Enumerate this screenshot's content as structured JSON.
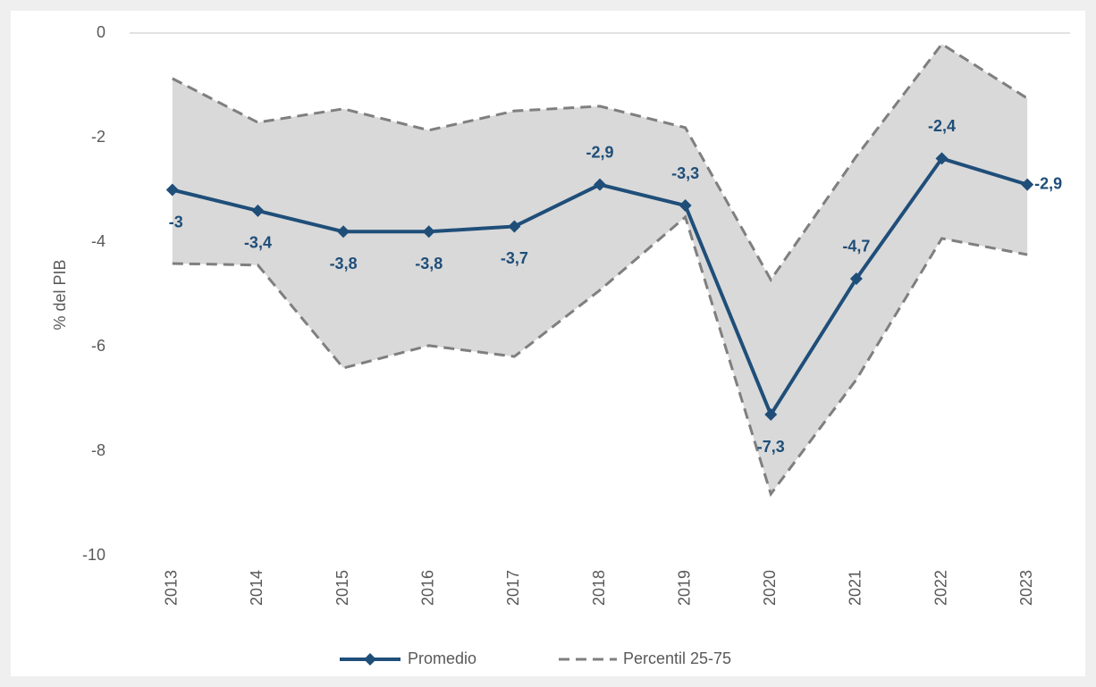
{
  "chart_data": {
    "type": "line",
    "y_label": "% del PIB",
    "categories": [
      "2013",
      "2014",
      "2015",
      "2016",
      "2017",
      "2018",
      "2019",
      "2020",
      "2021",
      "2022",
      "2023"
    ],
    "series": [
      {
        "name": "Promedio",
        "color": "#1f4e79",
        "values": [
          -3,
          -3.4,
          -3.8,
          -3.8,
          -3.7,
          -2.9,
          -3.3,
          -7.3,
          -4.7,
          -2.4,
          -2.9
        ],
        "value_labels": [
          "-3",
          "-3,4",
          "-3,8",
          "-3,8",
          "-3,7",
          "-2,9",
          "-3,3",
          "-7,3",
          "-4,7",
          "-2,4",
          "-2,9"
        ]
      },
      {
        "name": "Percentil 25-75",
        "color": "#7f7f7f",
        "fill": "#d9d9d9",
        "low": [
          -4.41,
          -4.44,
          -6.41,
          -5.98,
          -6.19,
          -4.92,
          -3.52,
          -8.82,
          -6.63,
          -3.93,
          -4.24
        ],
        "high": [
          -0.87,
          -1.71,
          -1.45,
          -1.86,
          -1.49,
          -1.4,
          -1.81,
          -4.72,
          -2.36,
          -0.21,
          -1.25
        ]
      }
    ],
    "ylim": [
      -10,
      0
    ],
    "yticks": [
      0,
      -2,
      -4,
      -6,
      -8,
      -10
    ],
    "grid": false
  }
}
